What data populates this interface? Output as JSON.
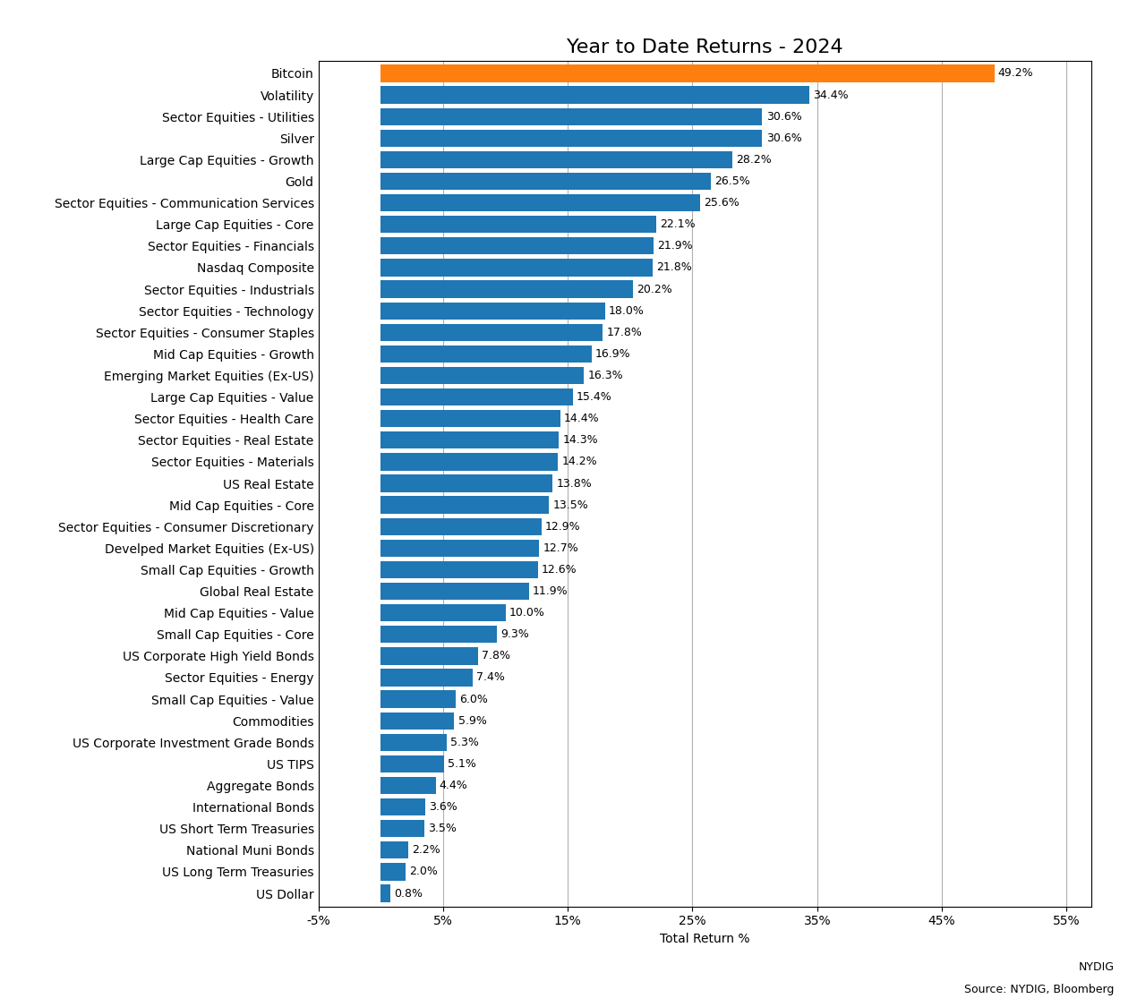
{
  "chart_data": {
    "type": "bar",
    "orientation": "horizontal",
    "title": "Year to Date Returns - 2024",
    "x_label": "Total Return %",
    "annotations": [
      "NYDIG",
      "Source: NYDIG, Bloomberg"
    ],
    "categories": [
      "Bitcoin",
      "Volatility",
      "Sector Equities - Utilities",
      "Silver",
      "Large Cap Equities - Growth",
      "Gold",
      "Sector Equities - Communication Services",
      "Large Cap Equities - Core",
      "Sector Equities - Financials",
      "Nasdaq Composite",
      "Sector Equities - Industrials",
      "Sector Equities - Technology",
      "Sector Equities - Consumer Staples",
      "Mid Cap Equities - Growth",
      "Emerging Market Equities (Ex-US)",
      "Large Cap Equities - Value",
      "Sector Equities - Health Care",
      "Sector Equities - Real Estate",
      "Sector Equities - Materials",
      "US Real Estate",
      "Mid Cap Equities - Core",
      "Sector Equities - Consumer Discretionary",
      "Develped Market Equities (Ex-US)",
      "Small Cap Equities - Growth",
      "Global Real Estate",
      "Mid Cap Equities - Value",
      "Small Cap Equities - Core",
      "US Corporate High Yield Bonds",
      "Sector Equities - Energy",
      "Small Cap Equities - Value",
      "Commodities",
      "US Corporate Investment Grade Bonds",
      "US TIPS",
      "Aggregate Bonds",
      "International Bonds",
      "US Short Term Treasuries",
      "National Muni Bonds",
      "US Long Term Treasuries",
      "US Dollar"
    ],
    "values": [
      49.2,
      34.4,
      30.6,
      30.6,
      28.2,
      26.5,
      25.6,
      22.1,
      21.9,
      21.8,
      20.2,
      18.0,
      17.8,
      16.9,
      16.3,
      15.4,
      14.4,
      14.3,
      14.2,
      13.8,
      13.5,
      12.9,
      12.7,
      12.6,
      11.9,
      10.0,
      9.3,
      7.8,
      7.4,
      6.0,
      5.9,
      5.3,
      5.1,
      4.4,
      3.6,
      3.5,
      2.2,
      2.0,
      0.8
    ],
    "value_labels": [
      "49.2%",
      "34.4%",
      "30.6%",
      "30.6%",
      "28.2%",
      "26.5%",
      "25.6%",
      "22.1%",
      "21.9%",
      "21.8%",
      "20.2%",
      "18.0%",
      "17.8%",
      "16.9%",
      "16.3%",
      "15.4%",
      "14.4%",
      "14.3%",
      "14.2%",
      "13.8%",
      "13.5%",
      "12.9%",
      "12.7%",
      "12.6%",
      "11.9%",
      "10.0%",
      "9.3%",
      "7.8%",
      "7.4%",
      "6.0%",
      "5.9%",
      "5.3%",
      "5.1%",
      "4.4%",
      "3.6%",
      "3.5%",
      "2.2%",
      "2.0%",
      "0.8%"
    ],
    "data_labels": true,
    "colors": [
      "#ff7f0e",
      "#1f77b4",
      "#1f77b4",
      "#1f77b4",
      "#1f77b4",
      "#1f77b4",
      "#1f77b4",
      "#1f77b4",
      "#1f77b4",
      "#1f77b4",
      "#1f77b4",
      "#1f77b4",
      "#1f77b4",
      "#1f77b4",
      "#1f77b4",
      "#1f77b4",
      "#1f77b4",
      "#1f77b4",
      "#1f77b4",
      "#1f77b4",
      "#1f77b4",
      "#1f77b4",
      "#1f77b4",
      "#1f77b4",
      "#1f77b4",
      "#1f77b4",
      "#1f77b4",
      "#1f77b4",
      "#1f77b4",
      "#1f77b4",
      "#1f77b4",
      "#1f77b4",
      "#1f77b4",
      "#1f77b4",
      "#1f77b4",
      "#1f77b4",
      "#1f77b4",
      "#1f77b4",
      "#1f77b4"
    ],
    "xlim": [
      -5,
      57
    ],
    "xticks": [
      {
        "value": -5,
        "label": "-5%"
      },
      {
        "value": 5,
        "label": "5%"
      },
      {
        "value": 15,
        "label": "15%"
      },
      {
        "value": 25,
        "label": "25%"
      },
      {
        "value": 35,
        "label": "35%"
      },
      {
        "value": 45,
        "label": "45%"
      },
      {
        "value": 55,
        "label": "55%"
      }
    ],
    "grid": true
  }
}
